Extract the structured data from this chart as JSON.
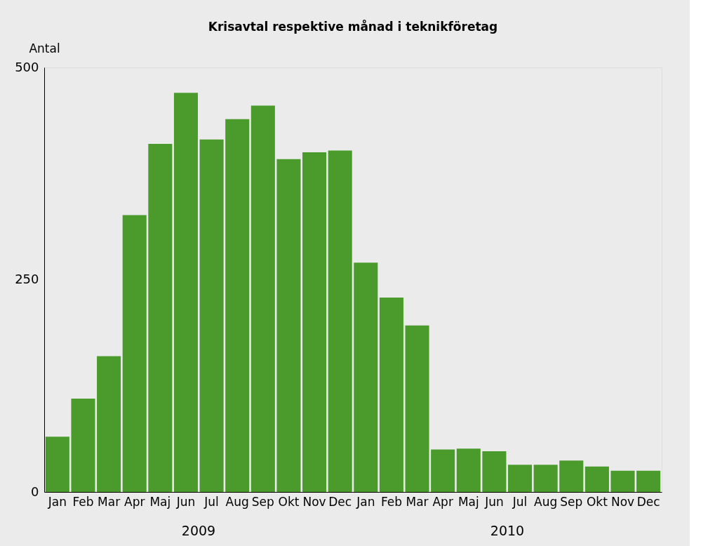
{
  "chart_data": {
    "type": "bar",
    "title": "Krisavtal respektive månad i teknikföretag",
    "ylabel": "Antal",
    "categories": [
      "Jan",
      "Feb",
      "Mar",
      "Apr",
      "Maj",
      "Jun",
      "Jul",
      "Aug",
      "Sep",
      "Okt",
      "Nov",
      "Dec",
      "Jan",
      "Feb",
      "Mar",
      "Apr",
      "Maj",
      "Jun",
      "Jul",
      "Aug",
      "Sep",
      "Okt",
      "Nov",
      "Dec"
    ],
    "values": [
      65,
      110,
      160,
      326,
      410,
      470,
      415,
      439,
      455,
      392,
      400,
      402,
      270,
      229,
      196,
      50,
      51,
      48,
      32,
      32,
      37,
      30,
      25,
      25
    ],
    "color": "#4a9a2c",
    "ylim": [
      0,
      500
    ],
    "yticks": [
      0,
      250,
      500
    ],
    "grid": false,
    "annotations": [
      "2009",
      "2010"
    ]
  }
}
